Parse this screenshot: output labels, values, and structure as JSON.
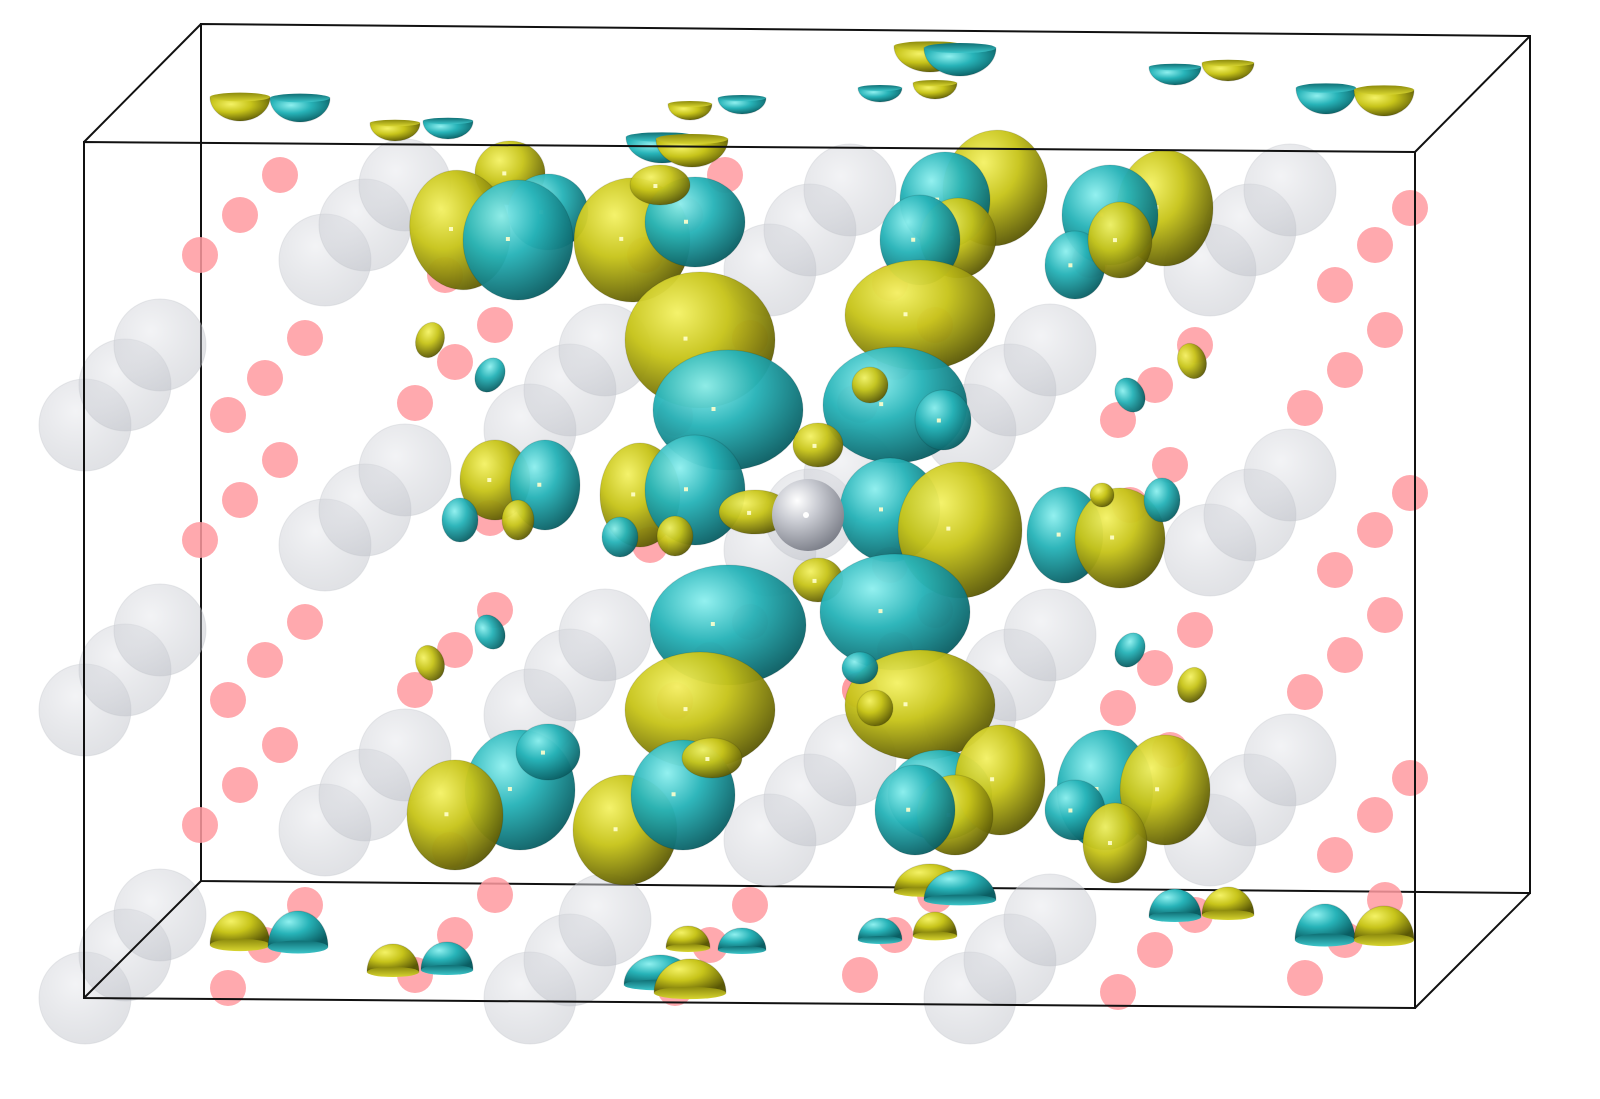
{
  "figure": {
    "kind": "isosurface-visualization",
    "background": "#ffffff",
    "colors": {
      "lobe_positive": "#c7c41a",
      "lobe_negative": "#27b3b8",
      "atom_small": "#ff9aa0",
      "atom_large": "#d4d6dc",
      "atom_center": "#c9cbd2",
      "box_edge": "#111111"
    },
    "legend": null,
    "labels": []
  }
}
